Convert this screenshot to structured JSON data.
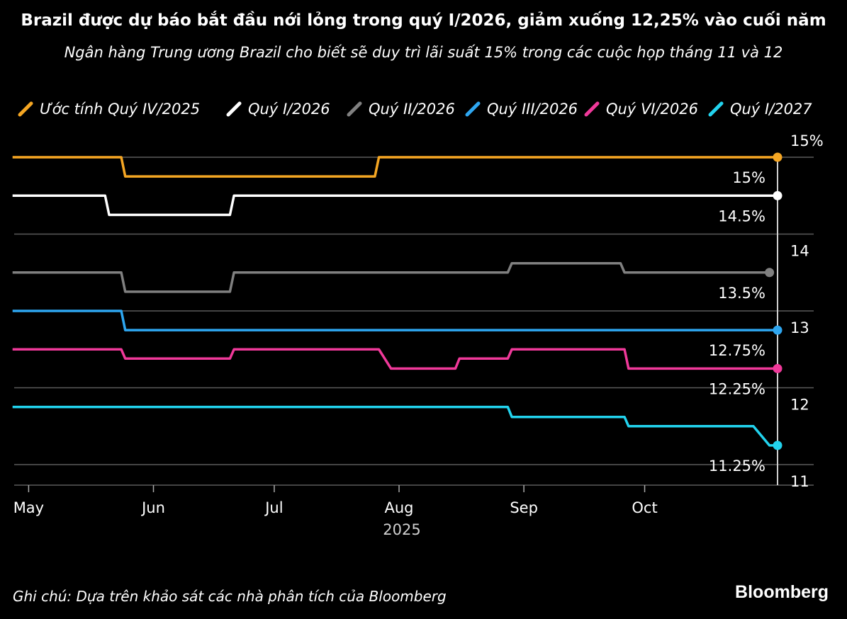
{
  "title": "Brazil được dự báo bắt đầu nới lỏng trong quý I/2026, giảm xuống 12,25% vào cuối năm",
  "subtitle": "Ngân hàng Trung ương Brazil cho biết sẽ duy trì lãi suất 15% trong các cuộc họp tháng 11 và 12",
  "note": "Ghi chú: Dựa trên khảo sát các nhà phân tích của Bloomberg",
  "brand": "Bloomberg",
  "chart_data": {
    "type": "line",
    "x_type": "date",
    "x_ticks": [
      {
        "date": "2025-05-01",
        "label": "May"
      },
      {
        "date": "2025-06-01",
        "label": "Jun"
      },
      {
        "date": "2025-07-01",
        "label": "Jul"
      },
      {
        "date": "2025-08-01",
        "label": "Aug"
      },
      {
        "date": "2025-09-01",
        "label": "Sep"
      },
      {
        "date": "2025-10-01",
        "label": "Oct"
      }
    ],
    "x_year_label": "2025",
    "xlim": [
      "2025-04-26",
      "2025-11-03"
    ],
    "ylim": [
      10.8,
      15.2
    ],
    "y_ticks": [
      {
        "value": 15,
        "label": "15%"
      },
      {
        "value": 14,
        "label": "14"
      },
      {
        "value": 13,
        "label": "13"
      },
      {
        "value": 12,
        "label": "12"
      },
      {
        "value": 11,
        "label": "11"
      }
    ],
    "grid": true,
    "legend_position": "top",
    "marker_date": "2025-11-03",
    "series": [
      {
        "name": "Ước tính Quý IV/2025",
        "color": "#f5a623",
        "end_label": "15%",
        "points": [
          [
            "2025-04-27",
            15
          ],
          [
            "2025-05-24",
            15
          ],
          [
            "2025-05-25",
            14.75
          ],
          [
            "2025-07-26",
            14.75
          ],
          [
            "2025-07-27",
            15
          ],
          [
            "2025-11-03",
            15
          ]
        ]
      },
      {
        "name": "Quý I/2026",
        "color": "#ffffff",
        "end_label": "14.5%",
        "points": [
          [
            "2025-04-27",
            14.5
          ],
          [
            "2025-05-20",
            14.5
          ],
          [
            "2025-05-21",
            14.25
          ],
          [
            "2025-06-20",
            14.25
          ],
          [
            "2025-06-21",
            14.5
          ],
          [
            "2025-11-03",
            14.5
          ]
        ]
      },
      {
        "name": "Quý II/2026",
        "color": "#808080",
        "end_label": "13.5%",
        "points": [
          [
            "2025-04-27",
            13.5
          ],
          [
            "2025-05-24",
            13.5
          ],
          [
            "2025-05-25",
            13.25
          ],
          [
            "2025-06-20",
            13.25
          ],
          [
            "2025-06-21",
            13.5
          ],
          [
            "2025-08-28",
            13.5
          ],
          [
            "2025-08-29",
            13.62
          ],
          [
            "2025-09-25",
            13.62
          ],
          [
            "2025-09-26",
            13.5
          ],
          [
            "2025-11-01",
            13.5
          ]
        ]
      },
      {
        "name": "Quý III/2026",
        "color": "#2ea6f0",
        "end_label": "12.75%",
        "points": [
          [
            "2025-04-27",
            13
          ],
          [
            "2025-05-24",
            13
          ],
          [
            "2025-05-25",
            12.75
          ],
          [
            "2025-11-03",
            12.75
          ]
        ]
      },
      {
        "name": "Quý VI/2026",
        "color": "#f0399a",
        "end_label": "12.25%",
        "points": [
          [
            "2025-04-27",
            12.5
          ],
          [
            "2025-05-24",
            12.5
          ],
          [
            "2025-05-25",
            12.38
          ],
          [
            "2025-06-20",
            12.38
          ],
          [
            "2025-06-21",
            12.5
          ],
          [
            "2025-07-27",
            12.5
          ],
          [
            "2025-07-30",
            12.25
          ],
          [
            "2025-08-15",
            12.25
          ],
          [
            "2025-08-16",
            12.38
          ],
          [
            "2025-08-28",
            12.38
          ],
          [
            "2025-08-29",
            12.5
          ],
          [
            "2025-09-26",
            12.5
          ],
          [
            "2025-09-27",
            12.25
          ],
          [
            "2025-11-03",
            12.25
          ]
        ]
      },
      {
        "name": "Quý I/2027",
        "color": "#22d3ee",
        "end_label": "11.25%",
        "points": [
          [
            "2025-04-27",
            11.75
          ],
          [
            "2025-08-28",
            11.75
          ],
          [
            "2025-08-29",
            11.62
          ],
          [
            "2025-09-26",
            11.62
          ],
          [
            "2025-09-27",
            11.5
          ],
          [
            "2025-10-28",
            11.5
          ],
          [
            "2025-11-01",
            11.25
          ],
          [
            "2025-11-03",
            11.25
          ]
        ]
      }
    ]
  }
}
